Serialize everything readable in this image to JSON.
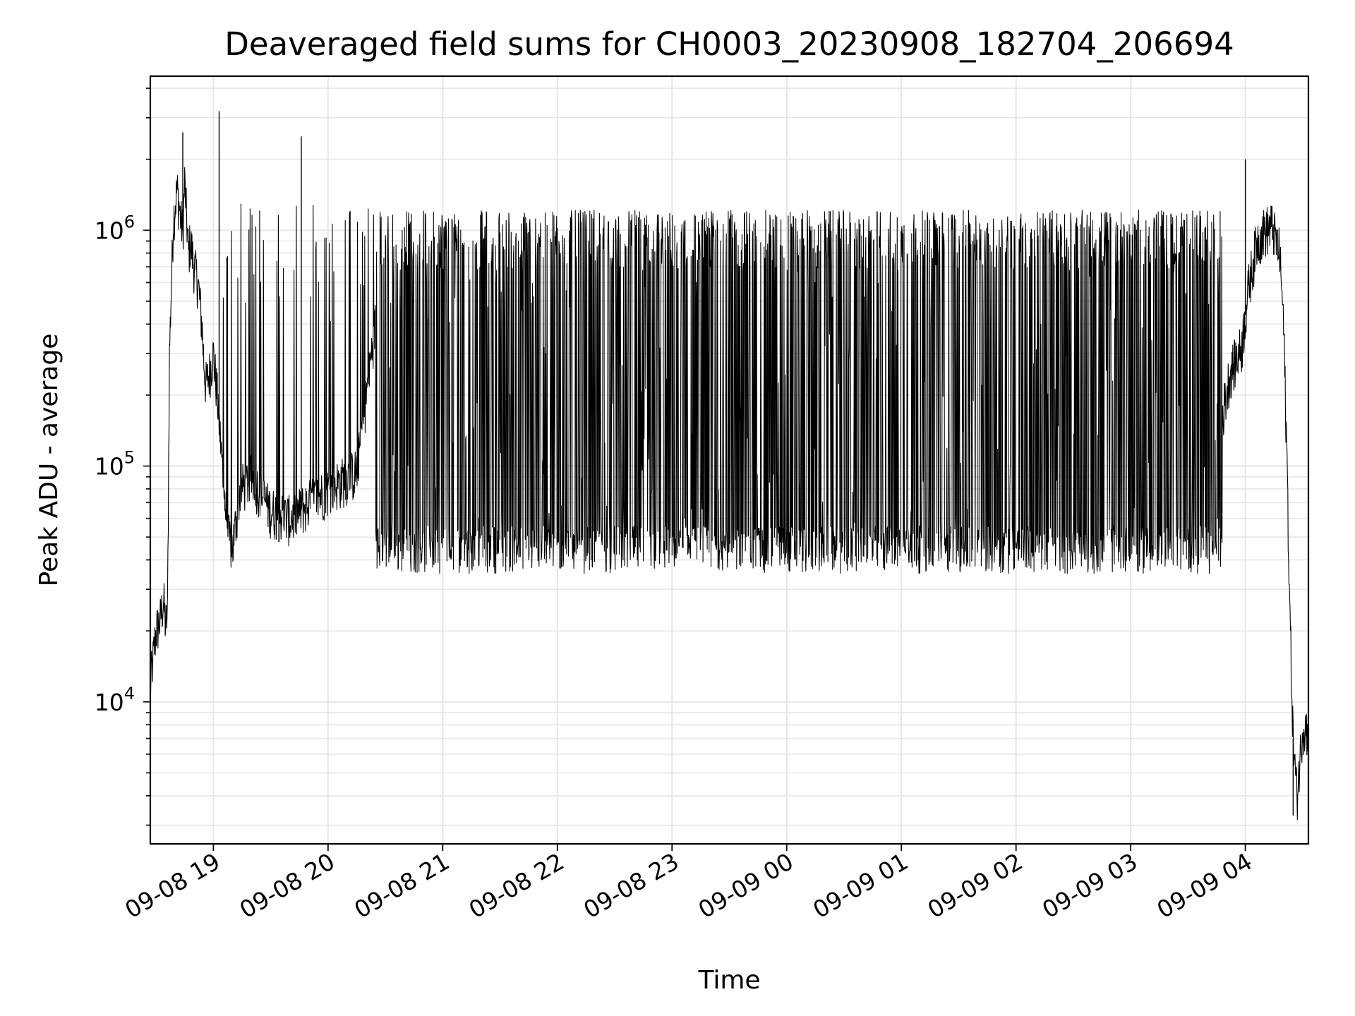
{
  "chart_data": {
    "type": "line",
    "title": "Deaveraged field sums for CH0003_20230908_182704_206694",
    "xlabel": "Time",
    "ylabel": "Peak ADU - average",
    "yscale": "log",
    "ylim": [
      2500,
      4500000
    ],
    "xlim": [
      "2023-09-08 18:27",
      "2023-09-09 04:33"
    ],
    "grid": true,
    "line_color": "#000000",
    "grid_color": "#e6e6e6",
    "x_ticks": [
      {
        "label": "09-08 19",
        "time": "2023-09-08 19:00"
      },
      {
        "label": "09-08 20",
        "time": "2023-09-08 20:00"
      },
      {
        "label": "09-08 21",
        "time": "2023-09-08 21:00"
      },
      {
        "label": "09-08 22",
        "time": "2023-09-08 22:00"
      },
      {
        "label": "09-08 23",
        "time": "2023-09-08 23:00"
      },
      {
        "label": "09-09 00",
        "time": "2023-09-09 00:00"
      },
      {
        "label": "09-09 01",
        "time": "2023-09-09 01:00"
      },
      {
        "label": "09-09 02",
        "time": "2023-09-09 02:00"
      },
      {
        "label": "09-09 03",
        "time": "2023-09-09 03:00"
      },
      {
        "label": "09-09 04",
        "time": "2023-09-09 04:00"
      }
    ],
    "y_ticks": [
      {
        "base": "10",
        "exp": "4",
        "value": 10000
      },
      {
        "base": "10",
        "exp": "5",
        "value": 100000
      },
      {
        "base": "10",
        "exp": "6",
        "value": 1000000
      }
    ],
    "series": [
      {
        "time": [
          "2023-09-08 18:27",
          "2023-09-08 18:30",
          "2023-09-08 18:32",
          "2023-09-08 18:34",
          "2023-09-08 18:35",
          "2023-09-08 18:36",
          "2023-09-08 18:37",
          "2023-09-08 18:39",
          "2023-09-08 18:41",
          "2023-09-08 18:43",
          "2023-09-08 18:44",
          "2023-09-08 18:45",
          "2023-09-08 18:47",
          "2023-09-08 18:48",
          "2023-09-08 18:50",
          "2023-09-08 18:52",
          "2023-09-08 18:54",
          "2023-09-08 18:55",
          "2023-09-08 18:56",
          "2023-09-08 18:58",
          "2023-09-08 19:00",
          "2023-09-08 19:02",
          "2023-09-08 19:04",
          "2023-09-08 19:06",
          "2023-09-08 19:08",
          "2023-09-08 19:10",
          "2023-09-08 19:12",
          "2023-09-08 19:14",
          "2023-09-08 19:20",
          "2023-09-08 19:30",
          "2023-09-08 19:40",
          "2023-09-08 19:50",
          "2023-09-08 20:00",
          "2023-09-08 20:15",
          "2023-09-08 20:30",
          "2023-09-08 20:45",
          "2023-09-08 21:00",
          "2023-09-08 21:15",
          "2023-09-08 21:30",
          "2023-09-08 21:45",
          "2023-09-08 22:00",
          "2023-09-08 22:30",
          "2023-09-08 23:00",
          "2023-09-08 23:30",
          "2023-09-09 00:00",
          "2023-09-09 00:30",
          "2023-09-09 01:00",
          "2023-09-09 01:30",
          "2023-09-09 02:00",
          "2023-09-09 02:30",
          "2023-09-09 03:00",
          "2023-09-09 03:20",
          "2023-09-09 03:35",
          "2023-09-09 03:45",
          "2023-09-09 03:52",
          "2023-09-09 03:58",
          "2023-09-09 04:02",
          "2023-09-09 04:06",
          "2023-09-09 04:10",
          "2023-09-09 04:14",
          "2023-09-09 04:18",
          "2023-09-09 04:20",
          "2023-09-09 04:22",
          "2023-09-09 04:23",
          "2023-09-09 04:25",
          "2023-09-09 04:27",
          "2023-09-09 04:30",
          "2023-09-09 04:33"
        ],
        "values": [
          11800,
          20000,
          22000,
          27000,
          21000,
          24000,
          300000,
          1100000,
          1500000,
          1100000,
          1000000,
          1600000,
          800000,
          900000,
          700000,
          600000,
          400000,
          280000,
          220000,
          250000,
          300000,
          200000,
          120000,
          70000,
          50000,
          45000,
          60000,
          80000,
          90000,
          65000,
          60000,
          70000,
          80000,
          95000,
          900000,
          1000000,
          60000,
          700000,
          55000,
          60000,
          45000,
          900000,
          1000000,
          1100000,
          1000000,
          1100000,
          1000000,
          900000,
          1100000,
          800000,
          60000,
          50000,
          55000,
          120000,
          250000,
          320000,
          600000,
          900000,
          1000000,
          1050000,
          800000,
          400000,
          90000,
          30000,
          7000,
          4000,
          8000,
          7500
        ]
      }
    ],
    "envelope": {
      "lower_band": [
        35000,
        48000
      ],
      "upper_band": [
        900000,
        1250000
      ],
      "notable_peaks": [
        {
          "time": "2023-09-08 18:44",
          "value": 2600000
        },
        {
          "time": "2023-09-08 19:03",
          "value": 3200000
        },
        {
          "time": "2023-09-08 19:46",
          "value": 2500000
        },
        {
          "time": "2023-09-09 04:00",
          "value": 2000000
        }
      ],
      "notable_troughs": [
        {
          "time": "2023-09-09 04:25",
          "value": 3300
        }
      ]
    }
  }
}
